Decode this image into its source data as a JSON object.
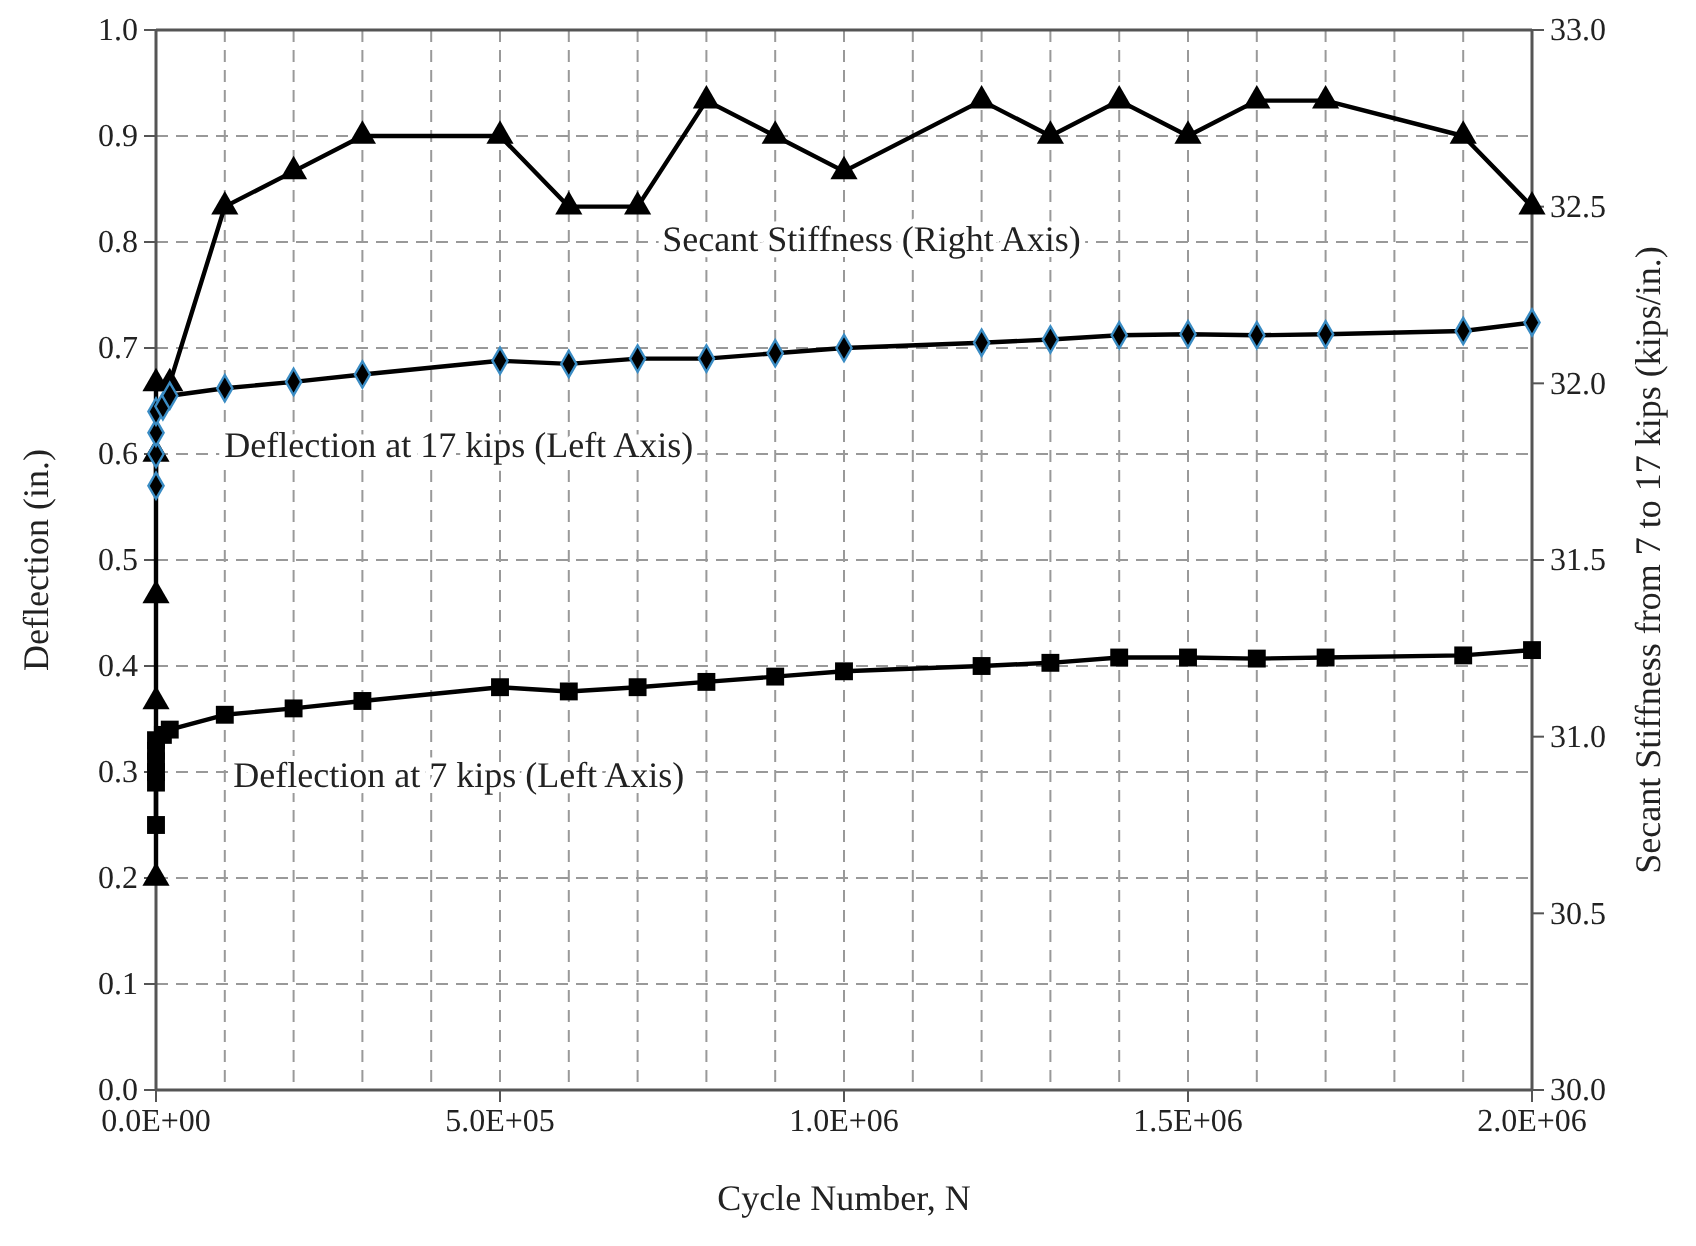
{
  "chart_data": {
    "type": "line",
    "xlabel": "Cycle Number, N",
    "ylabel": "Deflection (in.)",
    "y2label": "Secant Stiffness from 7 to 17 kips (kips/in.)",
    "xlim": [
      0,
      2000000
    ],
    "xticks": [
      {
        "value": 0,
        "label": "0.0E+00"
      },
      {
        "value": 100000,
        "label": null
      },
      {
        "value": 200000,
        "label": null
      },
      {
        "value": 300000,
        "label": null
      },
      {
        "value": 400000,
        "label": null
      },
      {
        "value": 500000,
        "label": "5.0E+05"
      },
      {
        "value": 600000,
        "label": null
      },
      {
        "value": 700000,
        "label": null
      },
      {
        "value": 800000,
        "label": null
      },
      {
        "value": 900000,
        "label": null
      },
      {
        "value": 1000000,
        "label": "1.0E+06"
      },
      {
        "value": 1100000,
        "label": null
      },
      {
        "value": 1200000,
        "label": null
      },
      {
        "value": 1300000,
        "label": null
      },
      {
        "value": 1400000,
        "label": null
      },
      {
        "value": 1500000,
        "label": "1.5E+06"
      },
      {
        "value": 1600000,
        "label": null
      },
      {
        "value": 1700000,
        "label": null
      },
      {
        "value": 1800000,
        "label": null
      },
      {
        "value": 1900000,
        "label": null
      },
      {
        "value": 2000000,
        "label": "2.0E+06"
      }
    ],
    "ylim": [
      0,
      1
    ],
    "yticks": [
      {
        "value": 0,
        "label": "0.0"
      },
      0.1,
      0.2,
      0.3,
      0.4,
      0.5,
      0.6,
      0.7,
      0.8,
      0.9,
      {
        "value": 1,
        "label": "1.0"
      }
    ],
    "y2lim": [
      30,
      33
    ],
    "y2ticks": [
      {
        "value": 30,
        "label": "30.0"
      },
      30.5,
      {
        "value": 31,
        "label": "31.0"
      },
      31.5,
      {
        "value": 32,
        "label": "32.0"
      },
      32.5,
      {
        "value": 33,
        "label": "33.0"
      }
    ],
    "grid": true,
    "line_style": "solid",
    "series": [
      {
        "name": "Secant Stiffness (Right Axis)",
        "axis": "y2",
        "marker": "triangle",
        "color": "#000000",
        "x": [
          0,
          0,
          0,
          0,
          0,
          20000,
          100000,
          200000,
          300000,
          500000,
          600000,
          700000,
          800000,
          900000,
          1000000,
          1200000,
          1300000,
          1400000,
          1500000,
          1600000,
          1700000,
          1900000,
          2000000
        ],
        "values": [
          30.6,
          31.1,
          31.4,
          31.8,
          32.0,
          32.0,
          32.5,
          32.6,
          32.7,
          32.7,
          32.5,
          32.5,
          32.8,
          32.7,
          32.6,
          32.8,
          32.7,
          32.8,
          32.7,
          32.8,
          32.8,
          32.7,
          32.5
        ]
      },
      {
        "name": "Deflection at 17 kips (Left Axis)",
        "marker": "diamond",
        "color": "#000000",
        "x": [
          0,
          0,
          0,
          0,
          10000,
          20000,
          100000,
          200000,
          300000,
          500000,
          600000,
          700000,
          800000,
          900000,
          1000000,
          1200000,
          1300000,
          1400000,
          1500000,
          1600000,
          1700000,
          1900000,
          2000000
        ],
        "values": [
          0.57,
          0.6,
          0.62,
          0.64,
          0.645,
          0.655,
          0.662,
          0.668,
          0.675,
          0.688,
          0.685,
          0.69,
          0.69,
          0.695,
          0.7,
          0.705,
          0.708,
          0.712,
          0.713,
          0.712,
          0.713,
          0.716,
          0.724
        ]
      },
      {
        "name": "Deflection at 7 kips (Left Axis)",
        "marker": "square",
        "color": "#000000",
        "x": [
          0,
          0,
          0,
          0,
          0,
          0,
          10000,
          20000,
          100000,
          200000,
          300000,
          500000,
          600000,
          700000,
          800000,
          900000,
          1000000,
          1200000,
          1300000,
          1400000,
          1500000,
          1600000,
          1700000,
          1900000,
          2000000
        ],
        "values": [
          0.25,
          0.29,
          0.3,
          0.31,
          0.32,
          0.33,
          0.335,
          0.34,
          0.354,
          0.36,
          0.367,
          0.38,
          0.376,
          0.38,
          0.385,
          0.39,
          0.395,
          0.4,
          0.403,
          0.408,
          0.408,
          0.407,
          0.408,
          0.41,
          0.415
        ]
      }
    ]
  }
}
